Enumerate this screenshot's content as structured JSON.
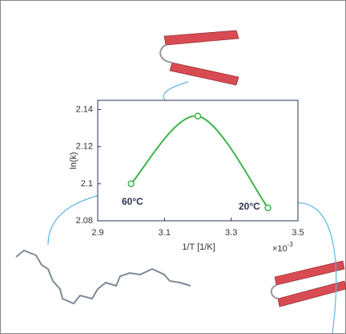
{
  "chart_data": {
    "type": "line",
    "xlabel": "1/T [1/K]",
    "ylabel": "ln(k)",
    "x_scale_note": {
      "base": "×10",
      "exp": "-3"
    },
    "annotations": [
      "60°C",
      "20°C"
    ],
    "x": [
      3.0,
      3.2,
      3.41
    ],
    "series": [
      {
        "color": "#3cb44b",
        "values": [
          2.1,
          2.1365,
          2.087
        ]
      }
    ],
    "xlim": [
      2.9,
      3.5
    ],
    "xticks": [
      2.9,
      3.1,
      3.3,
      3.5
    ],
    "ylim": [
      2.08,
      2.145
    ],
    "yticks": [
      2.08,
      2.1,
      2.12,
      2.14
    ],
    "grid": false
  }
}
